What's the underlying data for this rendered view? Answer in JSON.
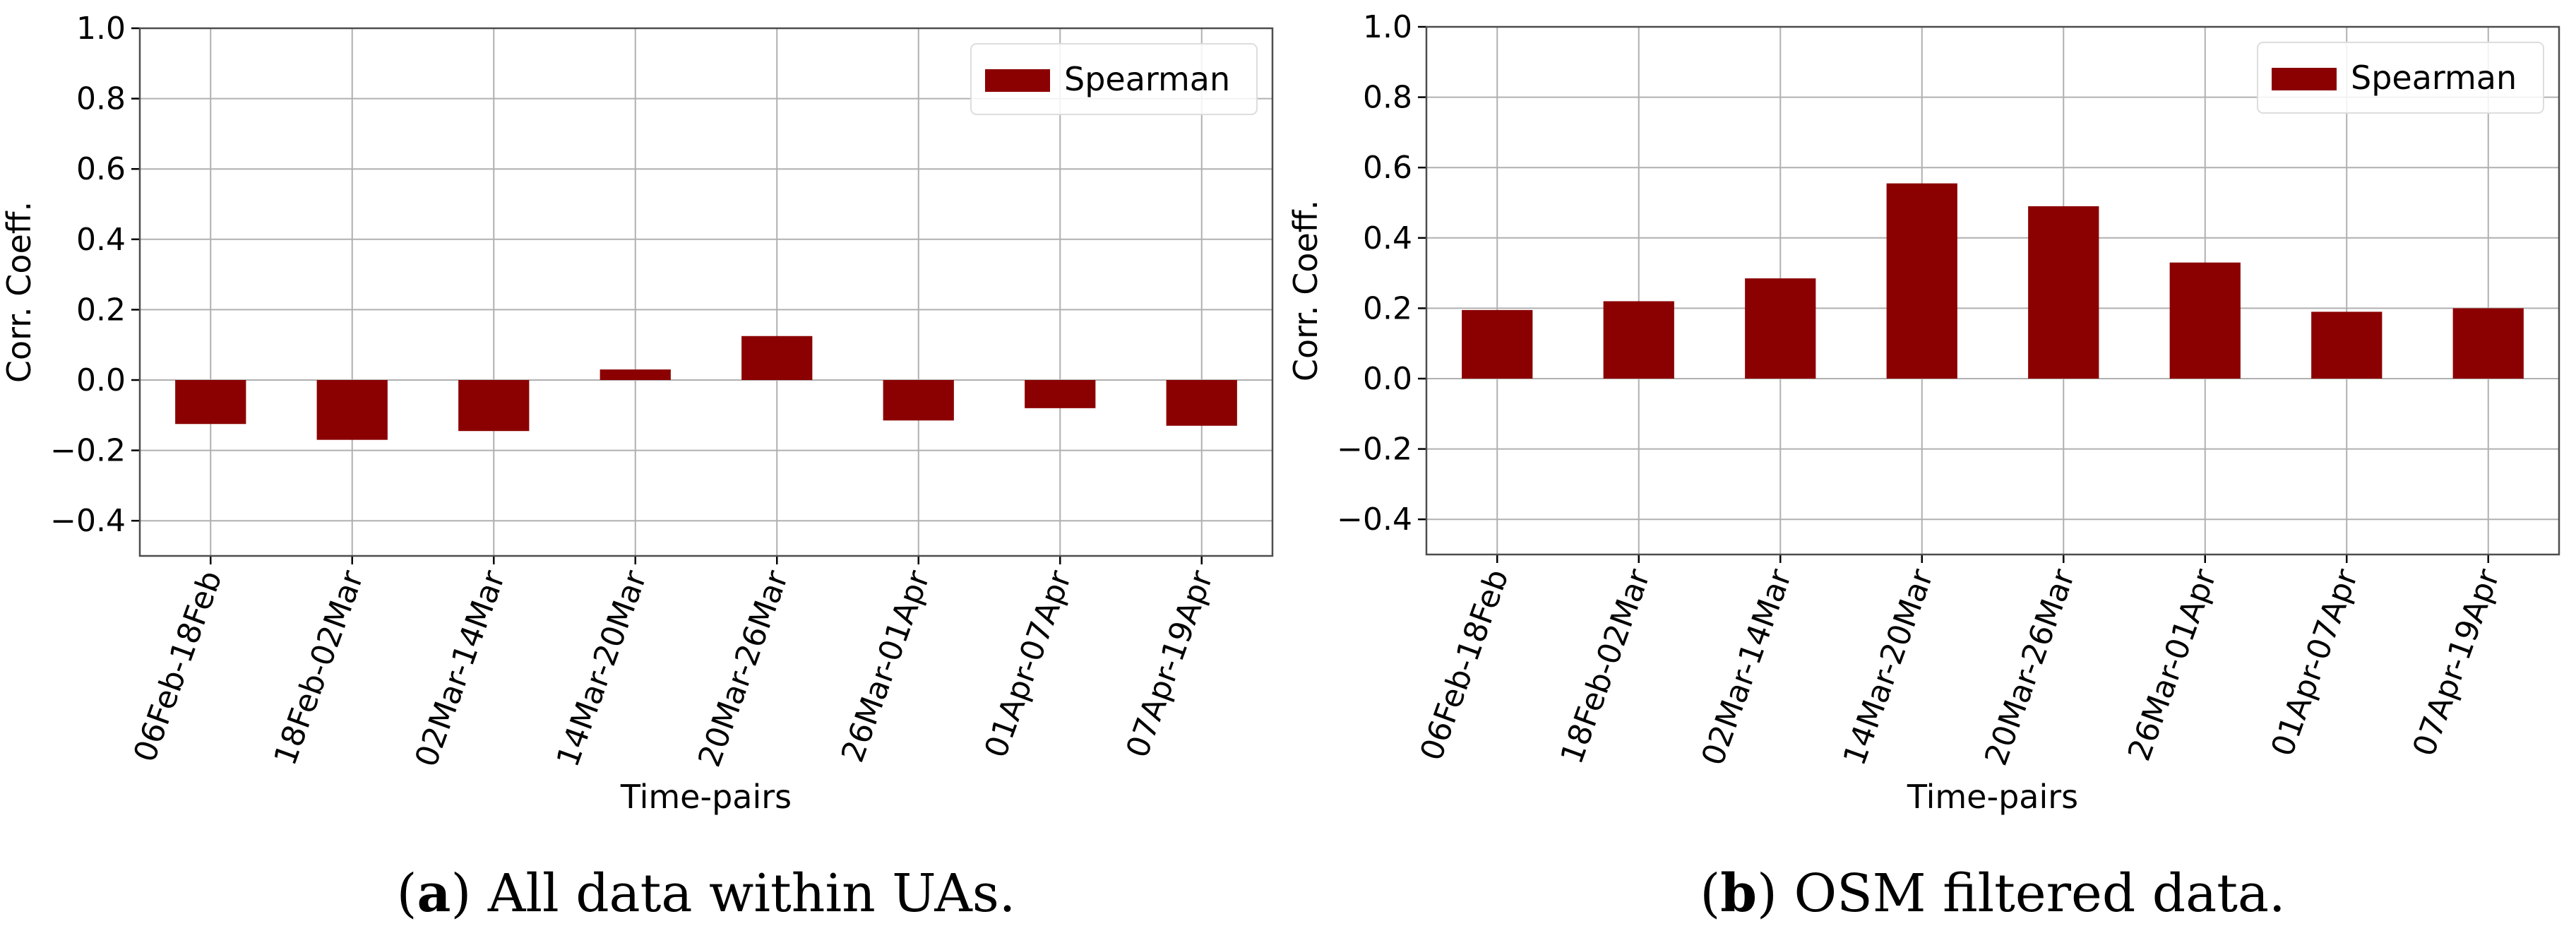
{
  "chart_data": [
    {
      "type": "bar",
      "title": "",
      "xlabel": "Time-pairs",
      "ylabel": "Corr. Coeff.",
      "ylim": [
        -0.5,
        1.0
      ],
      "yticks": [
        -0.4,
        -0.2,
        0.0,
        0.2,
        0.4,
        0.6,
        0.8,
        1.0
      ],
      "ytick_labels": [
        "−0.4",
        "−0.2",
        "0.0",
        "0.2",
        "0.4",
        "0.6",
        "0.8",
        "1.0"
      ],
      "grid": true,
      "legend_position": "top-right",
      "categories": [
        "06Feb-18Feb",
        "18Feb-02Mar",
        "02Mar-14Mar",
        "14Mar-20Mar",
        "20Mar-26Mar",
        "26Mar-01Apr",
        "01Apr-07Apr",
        "07Apr-19Apr"
      ],
      "series": [
        {
          "name": "Spearman",
          "color": "#8b0000",
          "values": [
            -0.125,
            -0.17,
            -0.145,
            0.03,
            0.125,
            -0.115,
            -0.08,
            -0.13
          ]
        }
      ],
      "caption_letter": "a",
      "caption_text": "All data within UAs."
    },
    {
      "type": "bar",
      "title": "",
      "xlabel": "Time-pairs",
      "ylabel": "Corr. Coeff.",
      "ylim": [
        -0.5,
        1.0
      ],
      "yticks": [
        -0.4,
        -0.2,
        0.0,
        0.2,
        0.4,
        0.6,
        0.8,
        1.0
      ],
      "ytick_labels": [
        "−0.4",
        "−0.2",
        "0.0",
        "0.2",
        "0.4",
        "0.6",
        "0.8",
        "1.0"
      ],
      "grid": true,
      "legend_position": "top-right",
      "categories": [
        "06Feb-18Feb",
        "18Feb-02Mar",
        "02Mar-14Mar",
        "14Mar-20Mar",
        "20Mar-26Mar",
        "26Mar-01Apr",
        "01Apr-07Apr",
        "07Apr-19Apr"
      ],
      "series": [
        {
          "name": "Spearman",
          "color": "#8b0000",
          "values": [
            0.195,
            0.22,
            0.285,
            0.555,
            0.49,
            0.33,
            0.19,
            0.2
          ]
        }
      ],
      "caption_letter": "b",
      "caption_text": "OSM filtered data."
    }
  ]
}
